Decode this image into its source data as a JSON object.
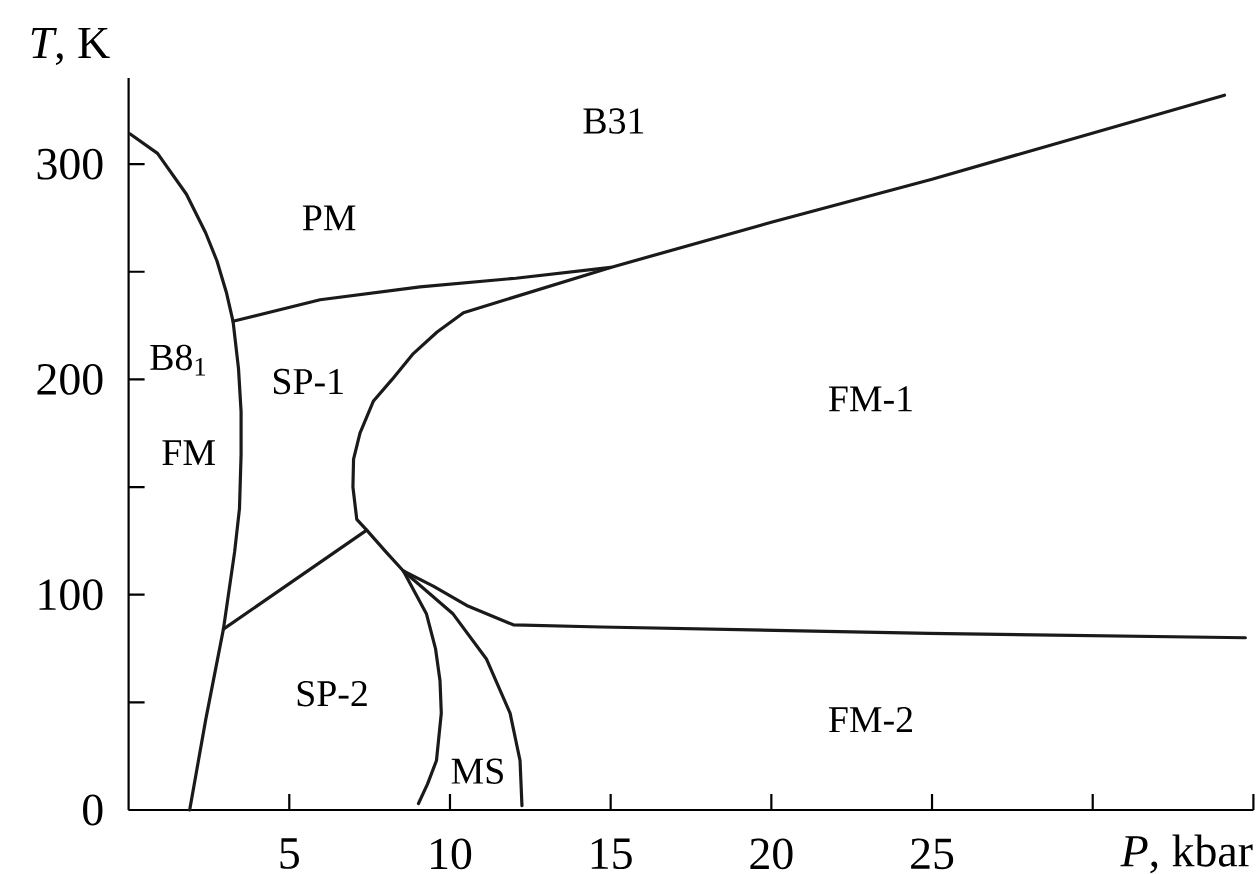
{
  "chart_data": {
    "type": "line",
    "xlabel": "*P*, kbar",
    "ylabel": "*T*, K",
    "xlim": [
      0,
      35
    ],
    "ylim": [
      0,
      340
    ],
    "xticks": [
      5,
      10,
      15,
      20,
      25,
      {
        "value": 30,
        "label": null
      },
      {
        "value": 35,
        "label": null
      }
    ],
    "yticks": [
      0,
      {
        "value": 50,
        "label": null
      },
      100,
      {
        "value": 150,
        "label": null
      },
      200,
      {
        "value": 250,
        "label": null
      },
      300
    ],
    "line_style": "solid",
    "series": [
      {
        "color": "#1a1a1a",
        "x": [
          0.05,
          0.9,
          1.8,
          2.4,
          2.75,
          3.05,
          3.25,
          3.42,
          3.5,
          3.5,
          3.45,
          3.3,
          2.95,
          2.4,
          1.9
        ],
        "values": [
          314,
          305,
          286,
          268,
          255,
          240,
          227,
          205,
          185,
          165,
          140,
          120,
          84,
          42,
          0
        ]
      },
      {
        "color": "#1a1a1a",
        "x": [
          3.25,
          5.96,
          9.07,
          12.05,
          15,
          20,
          25,
          29.2,
          34.1
        ],
        "values": [
          227,
          237,
          243,
          247,
          252,
          273,
          293,
          311,
          332
        ]
      },
      {
        "color": "#1a1a1a",
        "x": [
          15,
          10.42,
          9.6,
          8.86,
          8.2,
          7.62,
          7.2,
          7.0,
          6.98,
          7.1,
          7.41,
          8.0,
          8.55,
          9.48,
          10.52,
          11.97,
          14.7,
          24.9,
          34.75
        ],
        "values": [
          252,
          231,
          222,
          212,
          200,
          190,
          175,
          163,
          150,
          135,
          130,
          120,
          111,
          104,
          95,
          86,
          85,
          82,
          80
        ]
      },
      {
        "color": "#1a1a1a",
        "x": [
          2.95,
          7.41
        ],
        "values": [
          84,
          130
        ]
      },
      {
        "color": "#1a1a1a",
        "x": [
          8.55,
          9.27,
          9.55,
          9.69,
          9.73,
          9.58,
          9.3,
          9.02
        ],
        "values": [
          111,
          91,
          75,
          60,
          45,
          23,
          12,
          3
        ]
      },
      {
        "color": "#1a1a1a",
        "x": [
          8.55,
          10.1,
          11.14,
          11.87,
          12.18,
          12.24
        ],
        "values": [
          111,
          91,
          70,
          45,
          23,
          2
        ]
      }
    ],
    "annotations": [
      "B31",
      "PM",
      "B8$_{1}$",
      "SP-1",
      "FM",
      "FM-1",
      "SP-2",
      "MS",
      "FM-2"
    ]
  }
}
